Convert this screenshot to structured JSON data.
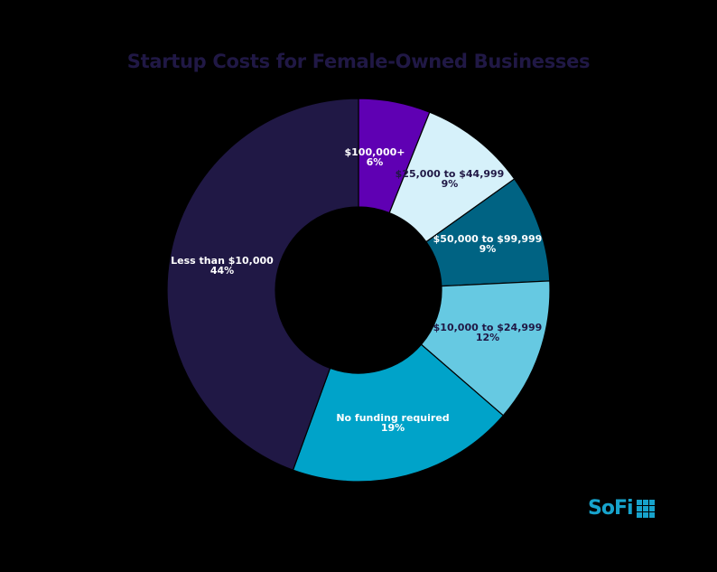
{
  "chart_data": {
    "type": "pie",
    "subtype": "donut",
    "title": "Startup Costs for Female-Owned Businesses",
    "start_angle_deg": 0,
    "direction": "clockwise",
    "slices": [
      {
        "label": "$100,000+",
        "value": 6,
        "display": "6%",
        "color": "#5f00b3",
        "text_color": "#ffffff"
      },
      {
        "label": "$25,000 to $44,999",
        "value": 9,
        "display": "9%",
        "color": "#d6f1fa",
        "text_color": "#201845"
      },
      {
        "label": "$50,000 to $99,999",
        "value": 9,
        "display": "9%",
        "color": "#006383",
        "text_color": "#ffffff"
      },
      {
        "label": "$10,000 to $24,999",
        "value": 12,
        "display": "12%",
        "color": "#66c9e2",
        "text_color": "#201845"
      },
      {
        "label": "No funding required",
        "value": 19,
        "display": "19%",
        "color": "#00a3c9",
        "text_color": "#ffffff"
      },
      {
        "label": "Less than $10,000",
        "value": 44,
        "display": "44%",
        "color": "#201845",
        "text_color": "#ffffff"
      }
    ],
    "legend": "none (labels on slices)"
  },
  "brand": {
    "logo_text": "SoFi",
    "logo_color": "#17a3cc"
  },
  "colors": {
    "background": "#000000",
    "title": "#201845"
  }
}
